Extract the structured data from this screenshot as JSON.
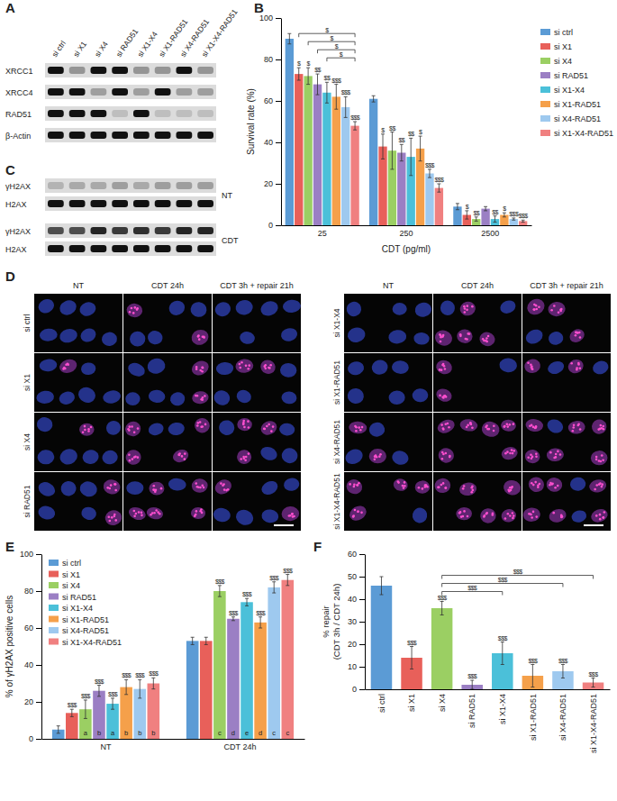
{
  "figure": {
    "panel_labels": [
      "A",
      "B",
      "C",
      "D",
      "E",
      "F"
    ],
    "blot_A": {
      "lanes": [
        "si ctrl",
        "si X1",
        "si X4",
        "si RAD51",
        "si X1-X4",
        "si X1-RAD51",
        "si X4-RAD51",
        "si X1-X4-RAD51"
      ],
      "rows": [
        {
          "label": "XRCC1",
          "levels": [
            1,
            0.35,
            1,
            1,
            0.35,
            0.35,
            1,
            0.35
          ]
        },
        {
          "label": "XRCC4",
          "levels": [
            1,
            1,
            0.3,
            1,
            0.3,
            1,
            0.3,
            0.3
          ]
        },
        {
          "label": "RAD51",
          "levels": [
            1,
            1,
            1,
            0.15,
            1,
            0.15,
            0.15,
            0.15
          ]
        },
        {
          "label": "β-Actin",
          "levels": [
            1,
            1,
            1,
            1,
            1,
            1,
            1,
            1
          ]
        }
      ]
    },
    "blot_C": {
      "groups": [
        {
          "label": "NT",
          "rows": [
            {
              "label": "γH2AX",
              "levels": [
                0.2,
                0.25,
                0.25,
                0.3,
                0.25,
                0.3,
                0.3,
                0.3
              ]
            },
            {
              "label": "H2AX",
              "levels": [
                1,
                1,
                1,
                1,
                1,
                1,
                1,
                1
              ]
            }
          ]
        },
        {
          "label": "CDT",
          "rows": [
            {
              "label": "γH2AX",
              "levels": [
                0.7,
                0.7,
                0.9,
                0.8,
                0.85,
                0.8,
                0.9,
                0.9
              ]
            },
            {
              "label": "H2AX",
              "levels": [
                1,
                1,
                1,
                1,
                1,
                1,
                1,
                1
              ]
            }
          ]
        }
      ]
    },
    "images_D": {
      "columns": [
        "NT",
        "CDT 24h",
        "CDT 3h + repair 21h"
      ],
      "halves": [
        {
          "rows": [
            "si ctrl",
            "si X1",
            "si X4",
            "si RAD51"
          ],
          "staining": [
            [
              0.1,
              0.5,
              0.25
            ],
            [
              0.15,
              0.5,
              0.45
            ],
            [
              0.15,
              0.8,
              0.5
            ],
            [
              0.25,
              0.65,
              0.6
            ]
          ]
        },
        {
          "rows": [
            "si X1-X4",
            "si X1-RAD51",
            "si X4-RAD51",
            "si X1-X4-RAD51"
          ],
          "staining": [
            [
              0.2,
              0.75,
              0.6
            ],
            [
              0.3,
              0.65,
              0.6
            ],
            [
              0.3,
              0.8,
              0.75
            ],
            [
              0.3,
              0.85,
              0.8
            ]
          ]
        }
      ]
    }
  },
  "chart_data": [
    {
      "type": "bar",
      "ylabel": "Survival rate (%)",
      "xlabel": "CDT (pg/ml)",
      "categories": [
        25,
        250,
        2500
      ],
      "ylim": [
        0,
        100
      ],
      "yticks": [
        0,
        20,
        40,
        60,
        80,
        100
      ],
      "legend": "right",
      "series": [
        {
          "name": "si ctrl",
          "color": "#5b9bd5",
          "values": [
            90,
            61,
            9
          ],
          "errors": [
            2.5,
            1.5,
            1.5
          ],
          "significance": [
            null,
            null,
            null
          ]
        },
        {
          "name": "si X1",
          "color": "#e8605a",
          "values": [
            73,
            38,
            5
          ],
          "errors": [
            3,
            6,
            2
          ],
          "significance": [
            "$",
            "$",
            "$"
          ]
        },
        {
          "name": "si X4",
          "color": "#9bcf63",
          "values": [
            72,
            36,
            3
          ],
          "errors": [
            4,
            9,
            1
          ],
          "significance": [
            "$",
            "$$",
            "$$"
          ]
        },
        {
          "name": "si RAD51",
          "color": "#9b7fc4",
          "values": [
            68,
            35,
            8
          ],
          "errors": [
            5,
            4,
            1
          ],
          "significance": [
            "$$",
            "$$",
            null
          ]
        },
        {
          "name": "si X1-X4",
          "color": "#4bc0d9",
          "values": [
            64,
            33,
            3
          ],
          "errors": [
            5,
            9,
            1.5
          ],
          "significance": [
            "$$",
            "$$",
            "$$"
          ]
        },
        {
          "name": "si X1-RAD51",
          "color": "#f5a04a",
          "values": [
            62,
            37,
            5
          ],
          "errors": [
            6,
            6,
            1
          ],
          "significance": [
            "$$$",
            "$",
            "$"
          ]
        },
        {
          "name": "si X4-RAD51",
          "color": "#9ec9ef",
          "values": [
            57,
            25,
            3
          ],
          "errors": [
            5,
            2,
            0.5
          ],
          "significance": [
            "$$$",
            "$$$",
            "$$$"
          ]
        },
        {
          "name": "si X1-X4-RAD51",
          "color": "#f08080",
          "values": [
            48,
            18,
            2
          ],
          "errors": [
            2,
            2,
            0.5
          ],
          "significance": [
            "$$$",
            "$$$",
            "$$$"
          ]
        }
      ],
      "comparisons": [
        {
          "category": 25,
          "from": "si X1-X4",
          "to": "si X1-X4-RAD51",
          "label": "$"
        },
        {
          "category": 25,
          "from": "si RAD51",
          "to": "si X1-X4-RAD51",
          "label": "$"
        },
        {
          "category": 25,
          "from": "si X4",
          "to": "si X1-X4-RAD51",
          "label": "$"
        },
        {
          "category": 25,
          "from": "si X1",
          "to": "si X1-X4-RAD51",
          "label": "$"
        }
      ]
    },
    {
      "type": "bar",
      "ylabel": "% of γH2AX positive cells",
      "categories": [
        "NT",
        "CDT 24h"
      ],
      "ylim": [
        0,
        100
      ],
      "yticks": [
        0,
        20,
        40,
        60,
        80,
        100
      ],
      "legend": "upper left",
      "series": [
        {
          "name": "si ctrl",
          "color": "#5b9bd5",
          "values": [
            5,
            53
          ],
          "errors": [
            2,
            2
          ],
          "significance": [
            null,
            null
          ],
          "letters": [
            null,
            null
          ]
        },
        {
          "name": "si X1",
          "color": "#e8605a",
          "values": [
            14,
            53
          ],
          "errors": [
            2,
            2
          ],
          "significance": [
            "$$$",
            null
          ],
          "letters": [
            null,
            null
          ]
        },
        {
          "name": "si X4",
          "color": "#9bcf63",
          "values": [
            16,
            80
          ],
          "errors": [
            5,
            3
          ],
          "significance": [
            "$$$",
            "$$$"
          ],
          "letters": [
            "a",
            "c"
          ]
        },
        {
          "name": "si RAD51",
          "color": "#9b7fc4",
          "values": [
            26,
            65
          ],
          "errors": [
            3,
            1
          ],
          "significance": [
            "$$$",
            "$$$"
          ],
          "letters": [
            "b",
            "d"
          ]
        },
        {
          "name": "si X1-X4",
          "color": "#4bc0d9",
          "values": [
            19,
            74
          ],
          "errors": [
            3,
            2
          ],
          "significance": [
            "$$$",
            "$$$"
          ],
          "letters": [
            "a",
            "e"
          ]
        },
        {
          "name": "si X1-RAD51",
          "color": "#f5a04a",
          "values": [
            28,
            63
          ],
          "errors": [
            4,
            3
          ],
          "significance": [
            "$$$",
            "$$$"
          ],
          "letters": [
            "b",
            "d"
          ]
        },
        {
          "name": "si X4-RAD51",
          "color": "#9ec9ef",
          "values": [
            27,
            82
          ],
          "errors": [
            5,
            3
          ],
          "significance": [
            "$$$",
            "$$$"
          ],
          "letters": [
            "b",
            "c"
          ]
        },
        {
          "name": "si X1-X4-RAD51",
          "color": "#f08080",
          "values": [
            30,
            86
          ],
          "errors": [
            3,
            3
          ],
          "significance": [
            "$$$",
            "$$$"
          ],
          "letters": [
            "b",
            "c"
          ]
        }
      ]
    },
    {
      "type": "bar",
      "ylabel": [
        "% repair",
        "(CDT 3h / CDT 24h)"
      ],
      "categories": [
        "si ctrl",
        "si X1",
        "si X4",
        "si RAD51",
        "si X1-X4",
        "si X1-RAD51",
        "si X4-RAD51",
        "si X1-X4-RAD51"
      ],
      "values": [
        46,
        14,
        36,
        2,
        16,
        6,
        8,
        3
      ],
      "errors": [
        4,
        5,
        3,
        2,
        5,
        5,
        3,
        2
      ],
      "colors": [
        "#5b9bd5",
        "#e8605a",
        "#9bcf63",
        "#9b7fc4",
        "#4bc0d9",
        "#f5a04a",
        "#9ec9ef",
        "#f08080"
      ],
      "significance": [
        null,
        "$$$",
        "$$$",
        "$$$",
        "$$$",
        "$$$",
        "$$$",
        "$$$"
      ],
      "ylim": [
        0,
        60
      ],
      "yticks": [
        0,
        10,
        20,
        30,
        40,
        50,
        60
      ],
      "comparisons": [
        {
          "from": "si X4",
          "to": "si X1-X4",
          "label": "$$$"
        },
        {
          "from": "si X4",
          "to": "si X4-RAD51",
          "label": "$$$"
        },
        {
          "from": "si X4",
          "to": "si X1-X4-RAD51",
          "label": "$$$"
        }
      ]
    }
  ]
}
